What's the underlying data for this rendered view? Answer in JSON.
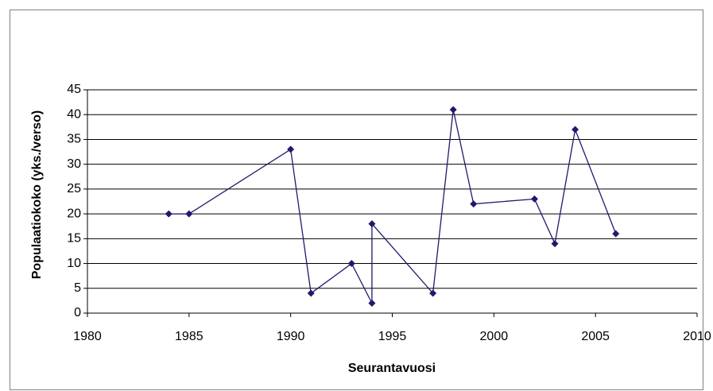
{
  "chart_data": {
    "type": "line",
    "x_label": "Seurantavuosi",
    "y_label": "Populaatiokoko (yks./verso)",
    "x": [
      1984,
      1985,
      1990,
      1991,
      1993,
      1994,
      1994,
      1997,
      1998,
      1999,
      2002,
      2003,
      2004,
      2006
    ],
    "series": [
      {
        "color": "#1f1a6b",
        "values": [
          20,
          20,
          33,
          4,
          10,
          2,
          18,
          4,
          41,
          22,
          23,
          14,
          37,
          16
        ]
      }
    ],
    "xlim": [
      1980,
      2010
    ],
    "xticks": [
      1980,
      1985,
      1990,
      1995,
      2000,
      2005,
      2010
    ],
    "ylim": [
      0,
      45
    ],
    "yticks": [
      0,
      5,
      10,
      15,
      20,
      25,
      30,
      35,
      40,
      45
    ],
    "grid": true
  }
}
